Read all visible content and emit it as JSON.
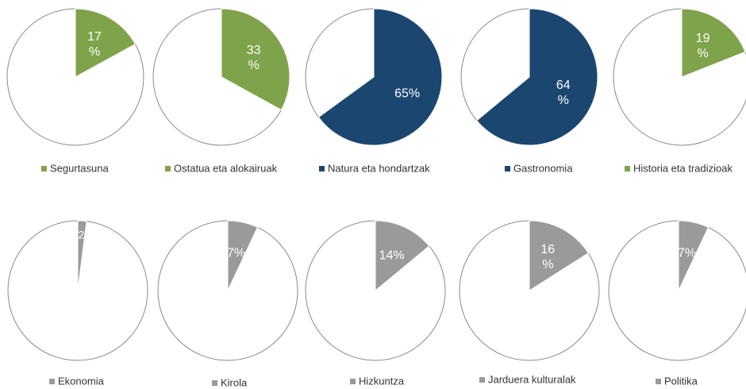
{
  "chart_data": [
    {
      "type": "pie",
      "categories": [
        "Segurtasuna"
      ],
      "values": [
        17
      ],
      "value_labels": [
        "17 %"
      ],
      "color": "#7fa34a"
    },
    {
      "type": "pie",
      "categories": [
        "Ostatua eta alokairuak"
      ],
      "values": [
        33
      ],
      "value_labels": [
        "33 %"
      ],
      "color": "#7fa34a"
    },
    {
      "type": "pie",
      "categories": [
        "Natura eta hondartzak"
      ],
      "values": [
        65
      ],
      "value_labels": [
        "65%"
      ],
      "color": "#1b4670"
    },
    {
      "type": "pie",
      "categories": [
        "Gastronomia"
      ],
      "values": [
        64
      ],
      "value_labels": [
        "64 %"
      ],
      "color": "#1b4670"
    },
    {
      "type": "pie",
      "categories": [
        "Historia eta tradizioak"
      ],
      "values": [
        19
      ],
      "value_labels": [
        "19 %"
      ],
      "color": "#7fa34a"
    },
    {
      "type": "pie",
      "categories": [
        "Ekonomia"
      ],
      "values": [
        2
      ],
      "value_labels": [
        "2"
      ],
      "color": "#9a9a9a"
    },
    {
      "type": "pie",
      "categories": [
        "Kirola"
      ],
      "values": [
        7
      ],
      "value_labels": [
        "7%"
      ],
      "color": "#9a9a9a"
    },
    {
      "type": "pie",
      "categories": [
        "Hizkuntza"
      ],
      "values": [
        14
      ],
      "value_labels": [
        "14%"
      ],
      "color": "#9a9a9a"
    },
    {
      "type": "pie",
      "categories": [
        "Jarduera kulturalak"
      ],
      "values": [
        16
      ],
      "value_labels": [
        "16 %"
      ],
      "color": "#9a9a9a"
    },
    {
      "type": "pie",
      "categories": [
        "Politika"
      ],
      "values": [
        7
      ],
      "value_labels": [
        "7%"
      ],
      "color": "#9a9a9a"
    }
  ]
}
